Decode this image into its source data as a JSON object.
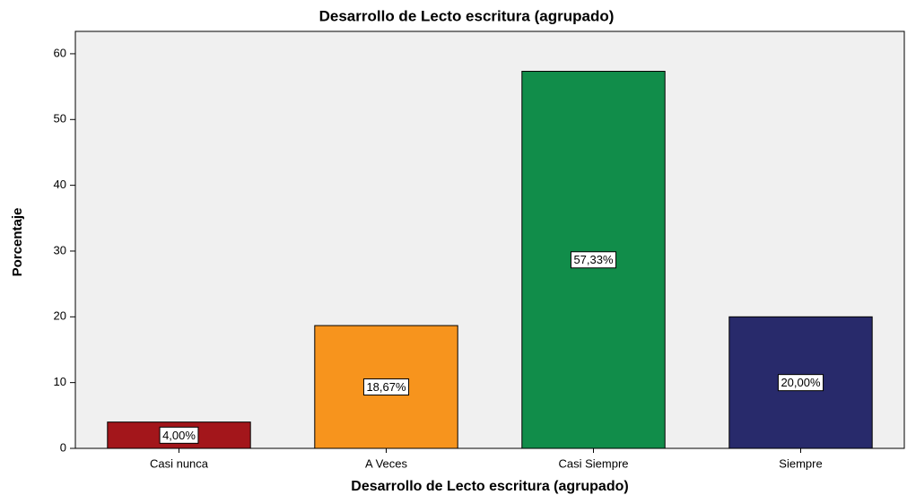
{
  "chart_data": {
    "type": "bar",
    "title": "Desarrollo de Lecto escritura  (agrupado)",
    "x_label": "Desarrollo de Lecto escritura  (agrupado)",
    "y_label": "Porcentaje",
    "categories": [
      "Casi nunca",
      "A Veces",
      "Casi Siempre",
      "Siempre"
    ],
    "values": [
      4.0,
      18.67,
      57.33,
      20.0
    ],
    "value_labels": [
      "4,00%",
      "18,67%",
      "57,33%",
      "20,00%"
    ],
    "colors": [
      "#a3161b",
      "#f7941d",
      "#118d4a",
      "#282a6b"
    ],
    "ylim": [
      0,
      63.4
    ],
    "yticks": [
      0,
      10,
      20,
      30,
      40,
      50,
      60
    ],
    "grid": false
  }
}
